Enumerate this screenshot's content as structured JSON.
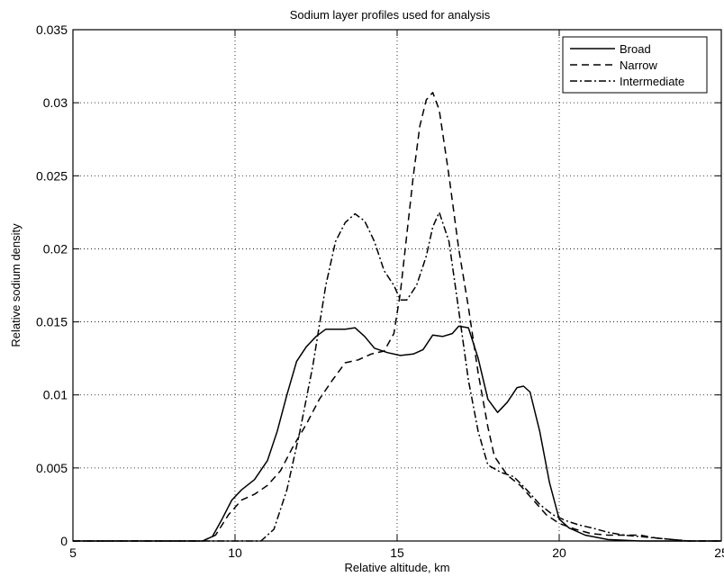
{
  "chart_data": {
    "type": "line",
    "title": "Sodium layer profiles used for analysis",
    "xlabel": "Relative altitude, km",
    "ylabel": "Relative sodium density",
    "xlim": [
      5,
      25
    ],
    "ylim": [
      0,
      0.035
    ],
    "xticks": [
      5,
      10,
      15,
      20,
      25
    ],
    "yticks": [
      0,
      0.005,
      0.01,
      0.015,
      0.02,
      0.025,
      0.03,
      0.035
    ],
    "xtick_labels": [
      "5",
      "10",
      "15",
      "20",
      "25"
    ],
    "ytick_labels": [
      "0",
      "0.005",
      "0.01",
      "0.015",
      "0.02",
      "0.025",
      "0.03",
      "0.035"
    ],
    "grid": true,
    "legend_position": "top-right",
    "series": [
      {
        "name": "Broad",
        "style": "solid",
        "points": [
          [
            5,
            0
          ],
          [
            9.0,
            0
          ],
          [
            9.3,
            0.0003
          ],
          [
            9.6,
            0.0015
          ],
          [
            9.9,
            0.0028
          ],
          [
            10.2,
            0.0035
          ],
          [
            10.6,
            0.0042
          ],
          [
            11.0,
            0.0055
          ],
          [
            11.3,
            0.0075
          ],
          [
            11.6,
            0.01
          ],
          [
            11.9,
            0.0123
          ],
          [
            12.2,
            0.0133
          ],
          [
            12.5,
            0.014
          ],
          [
            12.8,
            0.0145
          ],
          [
            13.1,
            0.0145
          ],
          [
            13.4,
            0.0145
          ],
          [
            13.7,
            0.0146
          ],
          [
            14.0,
            0.014
          ],
          [
            14.3,
            0.0132
          ],
          [
            14.7,
            0.0129
          ],
          [
            15.1,
            0.0127
          ],
          [
            15.5,
            0.0128
          ],
          [
            15.8,
            0.0131
          ],
          [
            16.1,
            0.0141
          ],
          [
            16.4,
            0.014
          ],
          [
            16.7,
            0.0142
          ],
          [
            16.9,
            0.0147
          ],
          [
            17.2,
            0.0146
          ],
          [
            17.5,
            0.0125
          ],
          [
            17.8,
            0.0097
          ],
          [
            18.1,
            0.0088
          ],
          [
            18.4,
            0.0095
          ],
          [
            18.7,
            0.0105
          ],
          [
            18.9,
            0.0106
          ],
          [
            19.1,
            0.0102
          ],
          [
            19.4,
            0.0075
          ],
          [
            19.7,
            0.004
          ],
          [
            20.0,
            0.0015
          ],
          [
            20.3,
            0.0009
          ],
          [
            20.8,
            0.0004
          ],
          [
            21.5,
            0.0001
          ],
          [
            22.5,
            0
          ],
          [
            25,
            0
          ]
        ]
      },
      {
        "name": "Narrow",
        "style": "dashed",
        "points": [
          [
            5,
            0
          ],
          [
            9.0,
            0
          ],
          [
            9.4,
            0.0004
          ],
          [
            9.8,
            0.0018
          ],
          [
            10.2,
            0.0028
          ],
          [
            10.6,
            0.0032
          ],
          [
            11.0,
            0.0038
          ],
          [
            11.4,
            0.0048
          ],
          [
            11.8,
            0.0065
          ],
          [
            12.2,
            0.008
          ],
          [
            12.6,
            0.0097
          ],
          [
            13.0,
            0.011
          ],
          [
            13.4,
            0.0122
          ],
          [
            13.8,
            0.0124
          ],
          [
            14.2,
            0.0128
          ],
          [
            14.6,
            0.013
          ],
          [
            14.9,
            0.0142
          ],
          [
            15.1,
            0.017
          ],
          [
            15.3,
            0.021
          ],
          [
            15.5,
            0.025
          ],
          [
            15.7,
            0.0284
          ],
          [
            15.9,
            0.0302
          ],
          [
            16.1,
            0.0307
          ],
          [
            16.3,
            0.0295
          ],
          [
            16.6,
            0.025
          ],
          [
            16.9,
            0.02
          ],
          [
            17.2,
            0.016
          ],
          [
            17.5,
            0.0115
          ],
          [
            17.8,
            0.0078
          ],
          [
            18.0,
            0.0058
          ],
          [
            18.4,
            0.0045
          ],
          [
            18.8,
            0.0038
          ],
          [
            19.2,
            0.0028
          ],
          [
            19.6,
            0.0018
          ],
          [
            20.0,
            0.0012
          ],
          [
            20.5,
            0.0008
          ],
          [
            21.0,
            0.0005
          ],
          [
            21.5,
            0.0004
          ],
          [
            22.0,
            0.0004
          ],
          [
            22.5,
            0.0004
          ],
          [
            23.0,
            0.0002
          ],
          [
            23.5,
            0.0001
          ],
          [
            24.0,
            0
          ],
          [
            25,
            0
          ]
        ]
      },
      {
        "name": "Intermediate",
        "style": "dashdot",
        "points": [
          [
            5,
            0
          ],
          [
            10.8,
            0
          ],
          [
            11.2,
            0.0008
          ],
          [
            11.6,
            0.0035
          ],
          [
            12.0,
            0.0075
          ],
          [
            12.4,
            0.012
          ],
          [
            12.8,
            0.0175
          ],
          [
            13.1,
            0.0205
          ],
          [
            13.4,
            0.0218
          ],
          [
            13.7,
            0.0224
          ],
          [
            14.0,
            0.0219
          ],
          [
            14.3,
            0.0205
          ],
          [
            14.6,
            0.0185
          ],
          [
            14.9,
            0.0175
          ],
          [
            15.1,
            0.0165
          ],
          [
            15.3,
            0.0165
          ],
          [
            15.6,
            0.0175
          ],
          [
            15.9,
            0.0195
          ],
          [
            16.1,
            0.0215
          ],
          [
            16.3,
            0.0225
          ],
          [
            16.6,
            0.0205
          ],
          [
            16.9,
            0.0158
          ],
          [
            17.2,
            0.011
          ],
          [
            17.5,
            0.0075
          ],
          [
            17.8,
            0.0052
          ],
          [
            18.2,
            0.0047
          ],
          [
            18.6,
            0.0044
          ],
          [
            19.0,
            0.0035
          ],
          [
            19.4,
            0.0025
          ],
          [
            19.8,
            0.0018
          ],
          [
            20.2,
            0.0014
          ],
          [
            20.6,
            0.0011
          ],
          [
            21.0,
            0.0009
          ],
          [
            21.5,
            0.0006
          ],
          [
            22.0,
            0.0004
          ],
          [
            22.5,
            0.0003
          ],
          [
            23.0,
            0.0002
          ],
          [
            23.5,
            0.0001
          ],
          [
            24.0,
            0
          ],
          [
            25,
            0
          ]
        ]
      }
    ]
  }
}
